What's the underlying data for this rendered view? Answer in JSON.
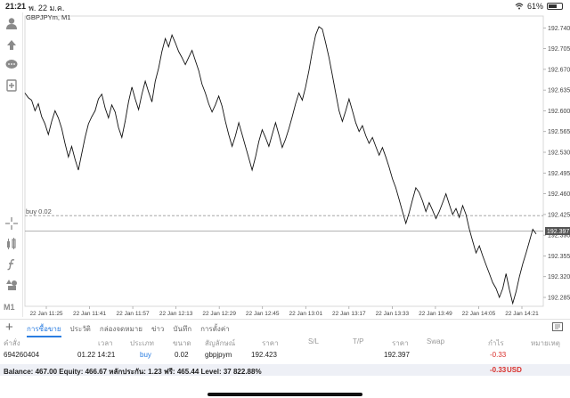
{
  "status_bar": {
    "time": "21:21",
    "date": "พ. 22 ม.ค.",
    "wifi_icon": "wifi-icon",
    "battery": "61%",
    "battery_level": 0.61
  },
  "chart": {
    "symbol_label": "GBPJPYm, M1",
    "order_line_label": "buy 0.02",
    "order_price": 192.423,
    "bid_price": 192.397,
    "bid_price_label": "192.397",
    "y_ticks": [
      "192.740",
      "192.705",
      "192.670",
      "192.635",
      "192.600",
      "192.565",
      "192.530",
      "192.495",
      "192.460",
      "192.425",
      "192.390",
      "192.355",
      "192.320",
      "192.285"
    ],
    "x_ticks": [
      "22 Jan 11:25",
      "22 Jan 11:41",
      "22 Jan 11:57",
      "22 Jan 12:13",
      "22 Jan 12:29",
      "22 Jan 12:45",
      "22 Jan 13:01",
      "22 Jan 13:17",
      "22 Jan 13:33",
      "22 Jan 13:49",
      "22 Jan 14:05",
      "22 Jan 14:21"
    ]
  },
  "chart_data": {
    "type": "line",
    "x_labels": [
      "22 Jan 11:25",
      "22 Jan 11:41",
      "22 Jan 11:57",
      "22 Jan 12:13",
      "22 Jan 12:29",
      "22 Jan 12:45",
      "22 Jan 13:01",
      "22 Jan 13:17",
      "22 Jan 13:33",
      "22 Jan 13:49",
      "22 Jan 14:05",
      "22 Jan 14:21"
    ],
    "ylim": [
      192.27,
      192.76
    ],
    "series": [
      {
        "values": [
          192.63,
          192.622,
          192.618,
          192.6,
          192.612,
          192.59,
          192.578,
          192.56,
          192.582,
          192.6,
          192.588,
          192.57,
          192.545,
          192.522,
          192.54,
          192.518,
          192.5,
          192.528,
          192.555,
          192.578,
          192.59,
          192.6,
          192.62,
          192.628,
          192.605,
          192.588,
          192.61,
          192.598,
          192.572,
          192.555,
          192.582,
          192.615,
          192.64,
          192.62,
          192.602,
          192.628,
          192.65,
          192.632,
          192.615,
          192.65,
          192.672,
          192.7,
          192.722,
          192.708,
          192.728,
          192.715,
          192.7,
          192.69,
          192.678,
          192.69,
          192.702,
          192.685,
          192.668,
          192.645,
          192.63,
          192.612,
          192.598,
          192.61,
          192.625,
          192.608,
          192.582,
          192.56,
          192.54,
          192.558,
          192.58,
          192.56,
          192.54,
          192.52,
          192.5,
          192.522,
          192.548,
          192.568,
          192.555,
          192.54,
          192.56,
          192.58,
          192.56,
          192.538,
          192.552,
          192.57,
          192.59,
          192.612,
          192.63,
          192.618,
          192.64,
          192.668,
          192.7,
          192.728,
          192.742,
          192.738,
          192.715,
          192.69,
          192.66,
          192.63,
          192.6,
          192.582,
          192.6,
          192.62,
          192.6,
          192.58,
          192.565,
          192.575,
          192.558,
          192.545,
          192.555,
          192.54,
          192.525,
          192.538,
          192.522,
          192.505,
          192.485,
          192.47,
          192.45,
          192.43,
          192.41,
          192.428,
          192.45,
          192.47,
          192.462,
          192.448,
          192.43,
          192.445,
          192.432,
          192.418,
          192.43,
          192.445,
          192.46,
          192.442,
          192.425,
          192.435,
          192.42,
          192.44,
          192.425,
          192.4,
          192.38,
          192.36,
          192.372,
          192.355,
          192.34,
          192.325,
          192.31,
          192.3,
          192.285,
          192.3,
          192.325,
          192.298,
          192.275,
          192.295,
          192.32,
          192.342,
          192.36,
          192.38,
          192.4,
          192.392
        ]
      }
    ]
  },
  "sidebar": {
    "icons": [
      "account-icon",
      "trade-arrows-icon",
      "chat-icon",
      "document-plus-icon",
      "crosshair-icon",
      "indicators-icon",
      "function-icon",
      "objects-icon"
    ],
    "timeframe": "M1"
  },
  "tabs": [
    {
      "label": "การซื้อขาย",
      "active": true
    },
    {
      "label": "ประวัติ",
      "active": false
    },
    {
      "label": "กล่องจดหมาย",
      "active": false
    },
    {
      "label": "ข่าว",
      "active": false
    },
    {
      "label": "บันทึก",
      "active": false
    },
    {
      "label": "การตั้งค่า",
      "active": false
    }
  ],
  "table": {
    "headers": {
      "order": "คำสั่ง",
      "time": "เวลา",
      "type": "ประเภท",
      "size": "ขนาด",
      "symbol": "สัญลักษณ์",
      "price": "ราคา",
      "sl": "S/L",
      "tp": "T/P",
      "current_price": "ราคา",
      "swap": "Swap",
      "profit": "กำไร",
      "comment": "หมายเหตุ"
    },
    "row": {
      "order": "694260404",
      "time": "01.22 14:21",
      "type": "buy",
      "size": "0.02",
      "symbol": "gbpjpym",
      "price": "192.423",
      "current_price": "192.397",
      "profit": "-0.33"
    }
  },
  "balance_bar": {
    "text": "Balance: 467.00 Equity: 466.67 หลักประกัน: 1.23 ฟรี: 465.44 Level: 37 822.88%",
    "total": "-0.33",
    "currency": "USD"
  },
  "colors": {
    "accent": "#2a7de1",
    "negative": "#d9302c",
    "line": "#111111",
    "grid": "#eeeeee"
  }
}
